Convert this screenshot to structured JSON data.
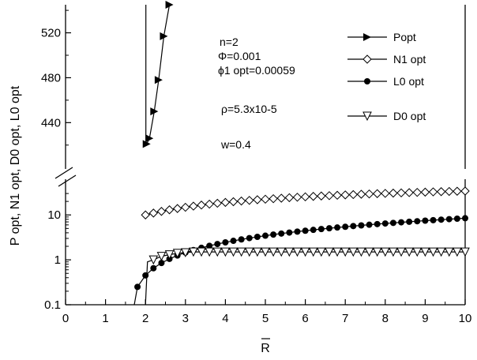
{
  "chart_data": {
    "type": "line",
    "title": "",
    "xlabel": "R",
    "xlabel_overbar": true,
    "ylabel": "P opt, N1 opt, D0 opt, L0 opt",
    "xlim": [
      0,
      10
    ],
    "x_ticks": [
      "0",
      "1",
      "2",
      "3",
      "4",
      "5",
      "6",
      "7",
      "8",
      "9",
      "10"
    ],
    "y_upper_ticks": [
      "440",
      "480",
      "520"
    ],
    "y_upper_range": [
      410,
      545
    ],
    "y_lower_ticks": [
      "0.1",
      "1",
      "10"
    ],
    "y_lower_scale": "log",
    "y_lower_range": [
      0.1,
      40
    ],
    "axis_break": true,
    "grid": false,
    "legend_placement": "top-right",
    "annotations": [
      "n=2",
      "Φ=0.001",
      "ϕ1 opt=0.00059",
      "ρ=5.3x10-5",
      "w=0.4"
    ],
    "series": [
      {
        "name": "Popt",
        "marker": "triangle-right",
        "panel": "upper",
        "x": [
          2.03,
          2.1,
          2.22,
          2.33,
          2.46,
          2.6
        ],
        "y": [
          421,
          426,
          450,
          478,
          517,
          545
        ]
      },
      {
        "name": "N1 opt",
        "marker": "diamond-open",
        "panel": "lower",
        "x": [
          2.0,
          2.2,
          2.4,
          2.6,
          2.8,
          3.0,
          3.2,
          3.4,
          3.6,
          3.8,
          4.0,
          4.2,
          4.4,
          4.6,
          4.8,
          5.0,
          5.2,
          5.4,
          5.6,
          5.8,
          6.0,
          6.2,
          6.4,
          6.6,
          6.8,
          7.0,
          7.2,
          7.4,
          7.6,
          7.8,
          8.0,
          8.2,
          8.4,
          8.6,
          8.8,
          9.0,
          9.2,
          9.4,
          9.6,
          9.8,
          10.0
        ],
        "y": [
          10.0,
          11.0,
          12.0,
          13.0,
          13.9,
          14.8,
          15.7,
          16.6,
          17.4,
          18.2,
          19.0,
          19.7,
          20.4,
          21.1,
          21.8,
          22.4,
          23.0,
          23.6,
          24.2,
          24.8,
          25.3,
          25.9,
          26.4,
          26.9,
          27.4,
          27.9,
          28.4,
          28.9,
          29.3,
          29.8,
          30.2,
          30.6,
          31.0,
          31.4,
          31.8,
          32.2,
          32.6,
          33.0,
          33.3,
          33.7,
          34.0
        ]
      },
      {
        "name": "L0 opt",
        "marker": "circle-filled",
        "panel": "lower",
        "x": [
          1.8,
          2.0,
          2.2,
          2.4,
          2.6,
          2.8,
          3.0,
          3.2,
          3.4,
          3.6,
          3.8,
          4.0,
          4.2,
          4.4,
          4.6,
          4.8,
          5.0,
          5.2,
          5.4,
          5.6,
          5.8,
          6.0,
          6.2,
          6.4,
          6.6,
          6.8,
          7.0,
          7.2,
          7.4,
          7.6,
          7.8,
          8.0,
          8.2,
          8.4,
          8.6,
          8.8,
          9.0,
          9.2,
          9.4,
          9.6,
          9.8,
          10.0
        ],
        "y": [
          0.25,
          0.45,
          0.65,
          0.85,
          1.05,
          1.25,
          1.45,
          1.65,
          1.85,
          2.05,
          2.25,
          2.45,
          2.65,
          2.85,
          3.05,
          3.25,
          3.45,
          3.65,
          3.85,
          4.05,
          4.25,
          4.45,
          4.65,
          4.85,
          5.05,
          5.25,
          5.45,
          5.65,
          5.85,
          6.05,
          6.25,
          6.45,
          6.65,
          6.85,
          7.05,
          7.25,
          7.45,
          7.65,
          7.85,
          8.05,
          8.25,
          8.45
        ]
      },
      {
        "name": "D0 opt",
        "marker": "triangle-down-open",
        "panel": "lower",
        "x": [
          2.2,
          2.4,
          2.6,
          2.8,
          3.0,
          3.2,
          3.4,
          3.6,
          3.8,
          4.0,
          4.2,
          4.4,
          4.6,
          4.8,
          5.0,
          5.2,
          5.4,
          5.6,
          5.8,
          6.0,
          6.2,
          6.4,
          6.6,
          6.8,
          7.0,
          7.2,
          7.4,
          7.6,
          7.8,
          8.0,
          8.2,
          8.4,
          8.6,
          8.8,
          9.0,
          9.2,
          9.4,
          9.6,
          9.8,
          10.0
        ],
        "y": [
          1.0,
          1.2,
          1.3,
          1.4,
          1.45,
          1.5,
          1.5,
          1.5,
          1.5,
          1.5,
          1.5,
          1.5,
          1.5,
          1.5,
          1.5,
          1.5,
          1.5,
          1.5,
          1.5,
          1.5,
          1.5,
          1.5,
          1.5,
          1.5,
          1.5,
          1.5,
          1.5,
          1.5,
          1.5,
          1.5,
          1.5,
          1.5,
          1.5,
          1.5,
          1.5,
          1.5,
          1.5,
          1.5,
          1.5,
          1.5
        ]
      }
    ]
  }
}
